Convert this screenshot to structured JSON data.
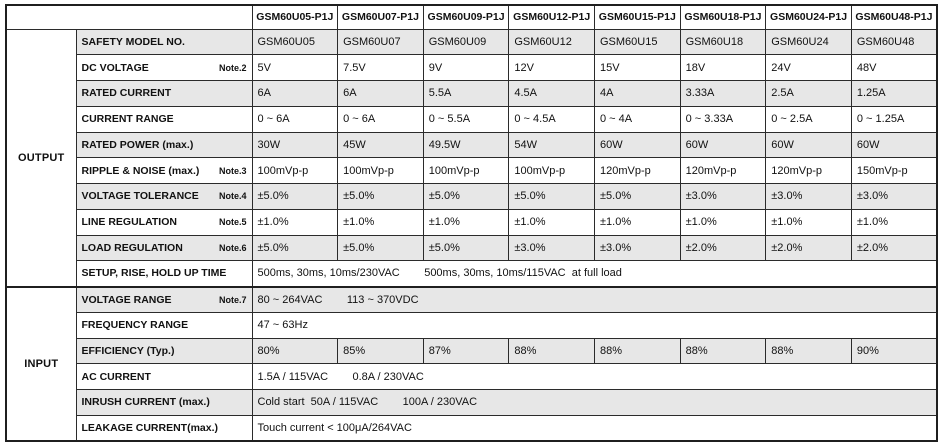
{
  "colors": {
    "row_shade": "#e7e7e7",
    "border": "#2b2b2b",
    "text": "#111111"
  },
  "table": {
    "models": [
      "GSM60U05-P1J",
      "GSM60U07-P1J",
      "GSM60U09-P1J",
      "GSM60U12-P1J",
      "GSM60U15-P1J",
      "GSM60U18-P1J",
      "GSM60U24-P1J",
      "GSM60U48-P1J"
    ],
    "sections": [
      {
        "name": "OUTPUT",
        "rows": [
          {
            "label": "SAFETY MODEL NO.",
            "note": "",
            "values": [
              "GSM60U05",
              "GSM60U07",
              "GSM60U09",
              "GSM60U12",
              "GSM60U15",
              "GSM60U18",
              "GSM60U24",
              "GSM60U48"
            ]
          },
          {
            "label": "DC VOLTAGE",
            "note": "Note.2",
            "values": [
              "5V",
              "7.5V",
              "9V",
              "12V",
              "15V",
              "18V",
              "24V",
              "48V"
            ]
          },
          {
            "label": "RATED CURRENT",
            "note": "",
            "values": [
              "6A",
              "6A",
              "5.5A",
              "4.5A",
              "4A",
              "3.33A",
              "2.5A",
              "1.25A"
            ]
          },
          {
            "label": "CURRENT RANGE",
            "note": "",
            "values": [
              "0 ~ 6A",
              "0 ~ 6A",
              "0 ~ 5.5A",
              "0 ~ 4.5A",
              "0 ~ 4A",
              "0 ~ 3.33A",
              "0 ~ 2.5A",
              "0 ~ 1.25A"
            ]
          },
          {
            "label": "RATED POWER (max.)",
            "note": "",
            "values": [
              "30W",
              "45W",
              "49.5W",
              "54W",
              "60W",
              "60W",
              "60W",
              "60W"
            ]
          },
          {
            "label": "RIPPLE & NOISE (max.)",
            "note": "Note.3",
            "values": [
              "100mVp-p",
              "100mVp-p",
              "100mVp-p",
              "100mVp-p",
              "120mVp-p",
              "120mVp-p",
              "120mVp-p",
              "150mVp-p"
            ]
          },
          {
            "label": "VOLTAGE TOLERANCE",
            "note": "Note.4",
            "values": [
              "±5.0%",
              "±5.0%",
              "±5.0%",
              "±5.0%",
              "±5.0%",
              "±3.0%",
              "±3.0%",
              "±3.0%"
            ]
          },
          {
            "label": "LINE REGULATION",
            "note": "Note.5",
            "values": [
              "±1.0%",
              "±1.0%",
              "±1.0%",
              "±1.0%",
              "±1.0%",
              "±1.0%",
              "±1.0%",
              "±1.0%"
            ]
          },
          {
            "label": "LOAD REGULATION",
            "note": "Note.6",
            "values": [
              "±5.0%",
              "±5.0%",
              "±5.0%",
              "±3.0%",
              "±3.0%",
              "±2.0%",
              "±2.0%",
              "±2.0%"
            ]
          },
          {
            "label": "SETUP, RISE, HOLD UP TIME",
            "note": "",
            "value": "500ms, 30ms, 10ms/230VAC        500ms, 30ms, 10ms/115VAC  at full load"
          }
        ]
      },
      {
        "name": "INPUT",
        "rows": [
          {
            "label": "VOLTAGE RANGE",
            "note": "Note.7",
            "value": "80 ~ 264VAC        113 ~ 370VDC"
          },
          {
            "label": "FREQUENCY RANGE",
            "note": "",
            "value": "47 ~ 63Hz"
          },
          {
            "label": "EFFICIENCY (Typ.)",
            "note": "",
            "values": [
              "80%",
              "85%",
              "87%",
              "88%",
              "88%",
              "88%",
              "88%",
              "90%"
            ]
          },
          {
            "label": "AC CURRENT",
            "note": "",
            "value": "1.5A / 115VAC        0.8A / 230VAC"
          },
          {
            "label": "INRUSH CURRENT (max.)",
            "note": "",
            "value": "Cold start  50A / 115VAC        100A / 230VAC"
          },
          {
            "label": "LEAKAGE CURRENT(max.)",
            "note": "",
            "value": "Touch current < 100μA/264VAC"
          }
        ]
      }
    ]
  }
}
